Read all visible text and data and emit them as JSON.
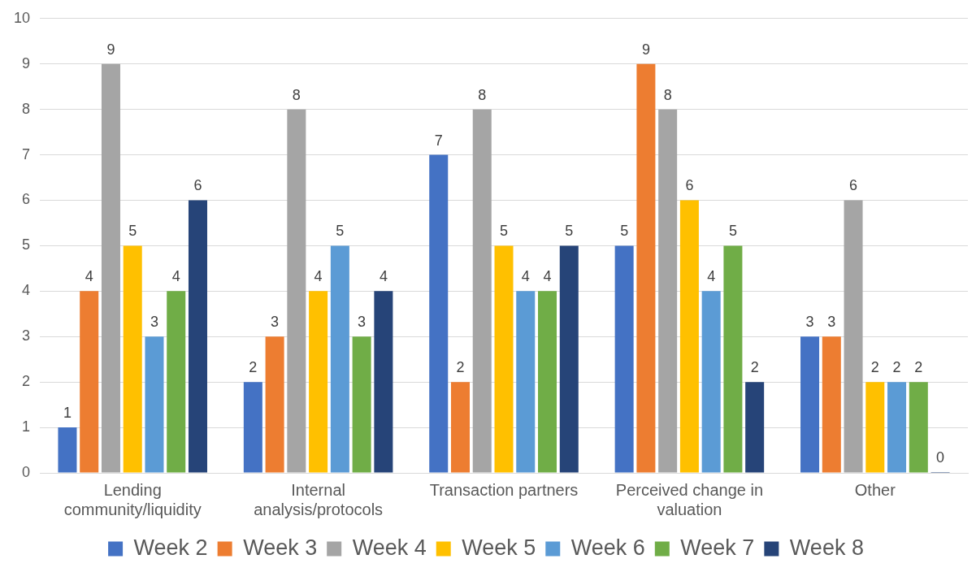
{
  "chart_data": {
    "type": "bar",
    "categories": [
      "Lending community/liquidity",
      "Internal analysis/protocols",
      "Transaction partners",
      "Perceived change in valuation",
      "Other"
    ],
    "series": [
      {
        "name": "Week 2",
        "color": "#4472c4",
        "values": [
          1,
          2,
          7,
          5,
          3
        ]
      },
      {
        "name": "Week 3",
        "color": "#ed7d31",
        "values": [
          4,
          3,
          2,
          9,
          3
        ]
      },
      {
        "name": "Week 4",
        "color": "#a5a5a5",
        "values": [
          9,
          8,
          8,
          8,
          6
        ]
      },
      {
        "name": "Week 5",
        "color": "#ffc000",
        "values": [
          5,
          4,
          5,
          6,
          2
        ]
      },
      {
        "name": "Week 6",
        "color": "#5b9bd5",
        "values": [
          3,
          5,
          4,
          4,
          2
        ]
      },
      {
        "name": "Week 7",
        "color": "#70ad47",
        "values": [
          4,
          3,
          4,
          5,
          2
        ]
      },
      {
        "name": "Week 8",
        "color": "#264478",
        "values": [
          6,
          4,
          5,
          2,
          0
        ]
      }
    ],
    "ylim": [
      0,
      10
    ],
    "yticks": [
      0,
      1,
      2,
      3,
      4,
      5,
      6,
      7,
      8,
      9,
      10
    ],
    "grid": "y",
    "legend": "bottom",
    "data_labels": true
  }
}
